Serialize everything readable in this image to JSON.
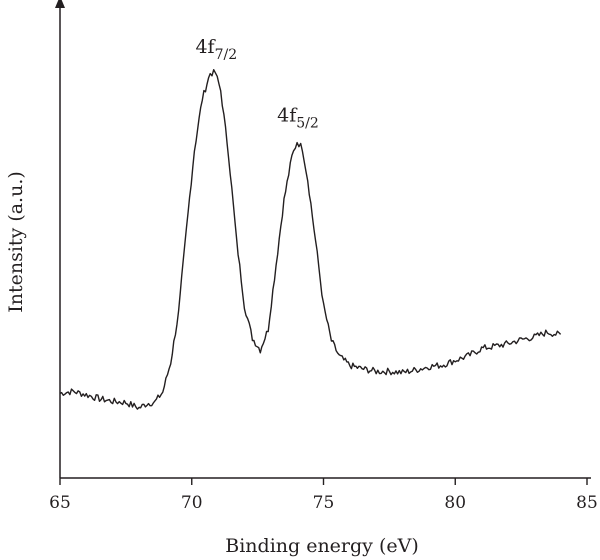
{
  "chart_data": {
    "type": "line",
    "xlabel": "Binding energy (eV)",
    "ylabel": "Intensity (a.u.)",
    "xlim": [
      65,
      85
    ],
    "ylim": [
      0,
      1
    ],
    "x_ticks": [
      "65",
      "70",
      "75",
      "80",
      "85"
    ],
    "y_ticks": [],
    "grid": false,
    "legend": "none",
    "line_color": "#231f20",
    "series": [
      {
        "x": [
          65.0,
          65.5,
          66.0,
          66.5,
          67.0,
          67.5,
          68.0,
          68.3,
          68.6,
          68.9,
          69.2,
          69.5,
          69.8,
          70.1,
          70.4,
          70.7,
          70.9,
          71.1,
          71.4,
          71.7,
          72.0,
          72.3,
          72.6,
          72.9,
          73.2,
          73.5,
          73.8,
          74.0,
          74.2,
          74.4,
          74.7,
          75.0,
          75.3,
          75.6,
          76.0,
          76.4,
          77.0,
          77.5,
          78.0,
          78.5,
          79.0,
          79.5,
          80.0,
          80.5,
          81.0,
          81.5,
          82.0,
          82.5,
          83.0,
          83.5,
          84.0
        ],
        "y": [
          0.121,
          0.126,
          0.117,
          0.106,
          0.099,
          0.096,
          0.081,
          0.093,
          0.097,
          0.124,
          0.204,
          0.339,
          0.565,
          0.778,
          0.917,
          0.986,
          0.987,
          0.939,
          0.765,
          0.535,
          0.357,
          0.27,
          0.238,
          0.294,
          0.469,
          0.643,
          0.76,
          0.801,
          0.783,
          0.699,
          0.532,
          0.358,
          0.263,
          0.221,
          0.196,
          0.188,
          0.18,
          0.18,
          0.177,
          0.184,
          0.193,
          0.197,
          0.21,
          0.222,
          0.242,
          0.248,
          0.255,
          0.266,
          0.273,
          0.286,
          0.278
        ]
      }
    ],
    "annotations": [
      {
        "base": "4f",
        "sub": "7/2",
        "x": 70.9,
        "y": 0.987
      },
      {
        "base": "4f",
        "sub": "5/2",
        "x": 74.0,
        "y": 0.801
      }
    ]
  }
}
